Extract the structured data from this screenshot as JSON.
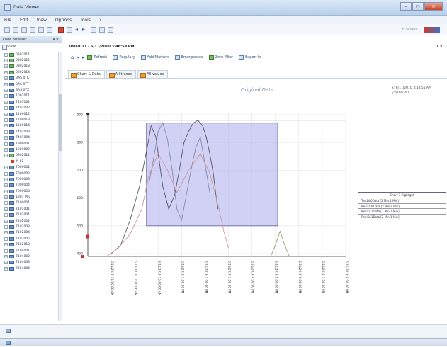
{
  "window": {
    "title": "Data Viewer",
    "minimize": "–",
    "maximize": "□",
    "close": "✕"
  },
  "menu": [
    "File",
    "Edit",
    "View",
    "Options",
    "Tools",
    "?"
  ],
  "toolbar": {
    "status_text": "Off Scales"
  },
  "sidebar": {
    "title": "Data Browser",
    "pin": "▾ ✕",
    "tab": "View",
    "items": [
      {
        "label": "0302011",
        "icon": "green-doc-icon"
      },
      {
        "label": "0302012",
        "icon": "green-doc-icon"
      },
      {
        "label": "0302013",
        "icon": "green-doc-icon"
      },
      {
        "label": "0302014",
        "icon": "green-doc-icon"
      },
      {
        "label": "BAS 0TK",
        "icon": "blue-doc-icon"
      },
      {
        "label": "BAS 0TT",
        "icon": "blue-doc-icon"
      },
      {
        "label": "BAS 0TZ",
        "icon": "blue-doc-icon"
      },
      {
        "label": "1001011",
        "icon": "blue-doc-icon"
      },
      {
        "label": "7401001",
        "icon": "blue-doc-icon"
      },
      {
        "label": "7401002",
        "icon": "blue-doc-icon"
      },
      {
        "label": "1100012",
        "icon": "blue-doc-icon"
      },
      {
        "label": "1100013",
        "icon": "blue-doc-icon"
      },
      {
        "label": "1100014",
        "icon": "blue-doc-icon"
      },
      {
        "label": "7401003",
        "icon": "blue-doc-icon"
      },
      {
        "label": "7401004",
        "icon": "blue-doc-icon"
      },
      {
        "label": "1900001",
        "icon": "blue-doc-icon"
      },
      {
        "label": "1900002",
        "icon": "blue-doc-icon"
      },
      {
        "label": "0902011",
        "icon": "green-doc-icon"
      },
      {
        "label": "N 02",
        "icon": "red-dot",
        "child": true
      },
      {
        "label": "7000001",
        "icon": "blue-doc-icon"
      },
      {
        "label": "7000002",
        "icon": "blue-doc-icon"
      },
      {
        "label": "7000003",
        "icon": "blue-doc-icon"
      },
      {
        "label": "7000004",
        "icon": "blue-doc-icon"
      },
      {
        "label": "7000005",
        "icon": "blue-doc-icon"
      },
      {
        "label": "1301 002",
        "icon": "blue-doc-icon"
      },
      {
        "label": "7100001",
        "icon": "blue-doc-icon"
      },
      {
        "label": "7101001",
        "icon": "blue-doc-icon"
      },
      {
        "label": "7102001",
        "icon": "blue-doc-icon"
      },
      {
        "label": "7102002",
        "icon": "blue-doc-icon"
      },
      {
        "label": "7102003",
        "icon": "blue-doc-icon"
      },
      {
        "label": "7102004",
        "icon": "blue-doc-icon"
      },
      {
        "label": "7102005",
        "icon": "blue-doc-icon"
      },
      {
        "label": "7102010",
        "icon": "blue-doc-icon"
      },
      {
        "label": "7104001",
        "icon": "blue-doc-icon"
      },
      {
        "label": "7104002",
        "icon": "blue-doc-icon"
      },
      {
        "label": "7104003",
        "icon": "blue-doc-icon"
      },
      {
        "label": "7104004",
        "icon": "blue-doc-icon"
      }
    ]
  },
  "document": {
    "title": "0902011 - 6/11/2010 3:46:59 PM",
    "close": "▾ ✕",
    "commands": [
      {
        "label": "Refresh",
        "icon": "refresh-icon"
      },
      {
        "label": "Regulary",
        "icon": "regulary-icon"
      },
      {
        "label": "Add Markers",
        "icon": "markers-icon"
      },
      {
        "label": "Emergences",
        "icon": "emergences-icon"
      },
      {
        "label": "Zero Filter",
        "icon": "filter-icon"
      },
      {
        "label": "Export to",
        "icon": "export-icon"
      }
    ],
    "tabs": [
      "Chart & Data",
      "All traces",
      "All values"
    ]
  },
  "chart": {
    "title": "Original Data",
    "readout_line1": "x: 6/11/2010 3:43:55 AM",
    "readout_line2": "y: 803.040",
    "legend_title": "Chart 3 Highlight",
    "legend_rows": [
      "TestDL0Data [2 Min 1 Min]",
      "RealDLNData [2 Min 1 Min]",
      "RealDL1Data [3 Min 1 Min]",
      "RealDL1Data [2 Min 1 Min]"
    ]
  },
  "chart_data": {
    "type": "line",
    "title": "Original Data",
    "ylim": [
      390,
      905
    ],
    "yticks": [
      900,
      800,
      700,
      600,
      500,
      400
    ],
    "ytick_labels": [
      "900",
      "800",
      "700",
      "600",
      "500",
      "400"
    ],
    "xticks": [
      "6/11/2010 10:00:00 AM",
      "6/11/2010 11:00:00 AM",
      "6/11/2010 12:00:00 AM",
      "6/11/2010 1:00:00 PM",
      "6/11/2010 2:00:00 PM",
      "6/11/2010 3:00:00 PM",
      "6/11/2010 4:00:00 PM",
      "6/11/2010 5:00:00 PM",
      "6/11/2010 6:00:00 PM",
      "6/11/2010 7:00:00 PM",
      "6/11/2010 8:00:00 PM"
    ],
    "series": [
      {
        "color": "#555566",
        "x": [
          1.0,
          1.4,
          1.8,
          2.2,
          2.55,
          2.7,
          2.9,
          3.0,
          3.2,
          3.45,
          3.7,
          3.9,
          4.1,
          4.3,
          4.5,
          4.7,
          4.9,
          5.05,
          5.2,
          5.35,
          5.45,
          5.55
        ],
        "y": [
          400,
          430,
          520,
          640,
          790,
          860,
          820,
          760,
          640,
          560,
          610,
          700,
          800,
          840,
          870,
          880,
          860,
          820,
          760,
          690,
          620,
          560
        ]
      },
      {
        "color": "#8888aa",
        "x": [
          2.6,
          2.8,
          3.0,
          3.2,
          3.4,
          3.6,
          3.8,
          4.0,
          4.2,
          4.4,
          4.6,
          4.8,
          5.0,
          5.2
        ],
        "y": [
          650,
          740,
          840,
          870,
          810,
          700,
          560,
          520,
          610,
          700,
          780,
          820,
          720,
          620
        ]
      },
      {
        "color": "#cc9999",
        "x": [
          0.8,
          1.3,
          1.8,
          2.3,
          2.6,
          3.0,
          3.4,
          3.8,
          4.3,
          4.8,
          5.2,
          5.6,
          5.8,
          6.0
        ],
        "y": [
          390,
          420,
          470,
          560,
          680,
          760,
          700,
          620,
          700,
          760,
          690,
          560,
          480,
          420
        ]
      },
      {
        "color": "#aa9977",
        "x": [
          7.8,
          8.0,
          8.2,
          8.4,
          8.6
        ],
        "y": [
          390,
          430,
          480,
          430,
          390
        ]
      }
    ],
    "highlight_region": {
      "x": [
        2.5,
        8.1
      ],
      "y": [
        500,
        870
      ]
    },
    "reference_line": {
      "y": 880
    },
    "markers": {
      "y": [
        900,
        460,
        400
      ],
      "colors": [
        "#222222",
        "#d03030",
        "#d03030"
      ]
    }
  }
}
